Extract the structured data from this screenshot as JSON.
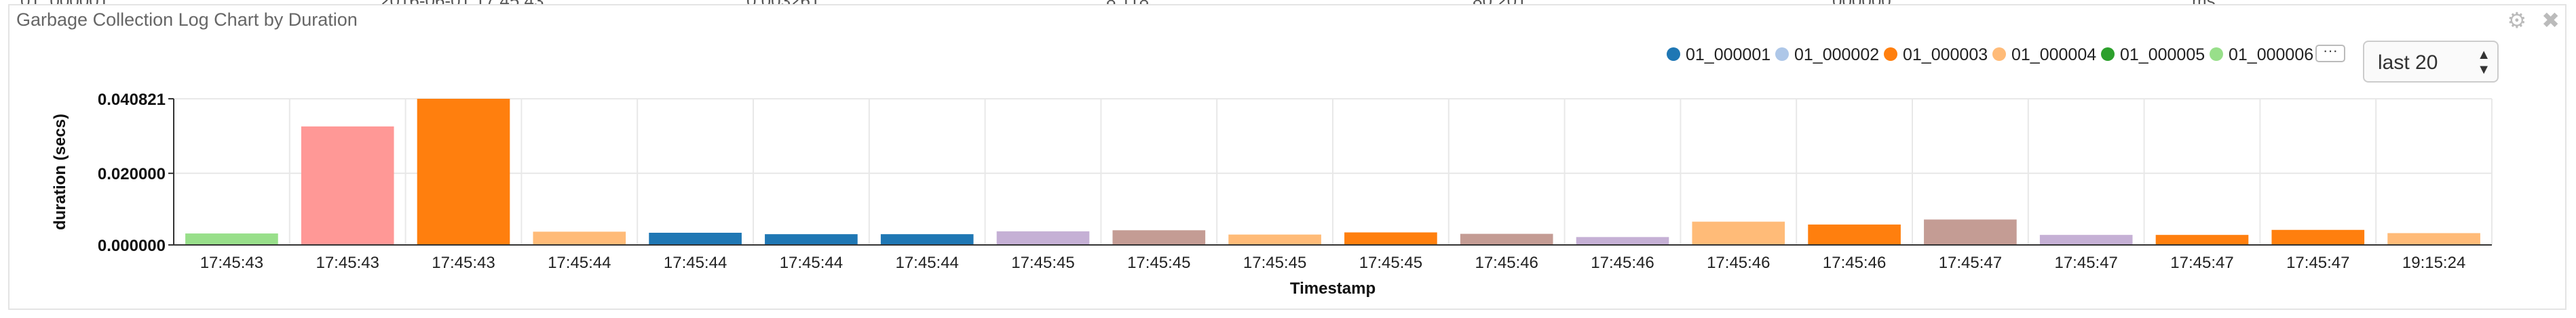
{
  "panel": {
    "title": "Garbage Collection Log Chart by Duration",
    "settings_icon": "gear-icon",
    "close_icon": "close-icon"
  },
  "legend_more_label": "···",
  "range_select": {
    "value": "last 20"
  },
  "chart_data": {
    "type": "bar",
    "xlabel": "Timestamp",
    "ylabel": "duration (secs)",
    "ytick_labels": [
      "0.000000",
      "0.020000",
      "0.040821"
    ],
    "ylim": [
      0,
      0.040821
    ],
    "grid": true,
    "legend_position": "top-right",
    "legend": [
      {
        "name": "01_000001",
        "color": "#1f77b4"
      },
      {
        "name": "01_000002",
        "color": "#aec7e8"
      },
      {
        "name": "01_000003",
        "color": "#ff7f0e"
      },
      {
        "name": "01_000004",
        "color": "#ffbb78"
      },
      {
        "name": "01_000005",
        "color": "#2ca02c"
      },
      {
        "name": "01_000006",
        "color": "#98df8a"
      }
    ],
    "categories": [
      "17:45:43",
      "17:45:43",
      "17:45:43",
      "17:45:44",
      "17:45:44",
      "17:45:44",
      "17:45:44",
      "17:45:45",
      "17:45:45",
      "17:45:45",
      "17:45:45",
      "17:45:46",
      "17:45:46",
      "17:45:46",
      "17:45:46",
      "17:45:47",
      "17:45:47",
      "17:45:47",
      "17:45:47",
      "19:15:24"
    ],
    "values": [
      0.0032,
      0.0331,
      0.040821,
      0.0037,
      0.0034,
      0.003,
      0.003,
      0.0038,
      0.0041,
      0.0029,
      0.0035,
      0.0031,
      0.0022,
      0.0065,
      0.0057,
      0.0071,
      0.0028,
      0.0028,
      0.0042,
      0.0033
    ],
    "bar_colors": [
      "#98df8a",
      "#ff9896",
      "#ff7f0e",
      "#ffbb78",
      "#1f77b4",
      "#1f77b4",
      "#1f77b4",
      "#c5b0d5",
      "#c49c94",
      "#ffbb78",
      "#ff7f0e",
      "#c49c94",
      "#c5b0d5",
      "#ffbb78",
      "#ff7f0e",
      "#c49c94",
      "#c5b0d5",
      "#ff7f0e",
      "#ff7f0e",
      "#ffbb78"
    ]
  }
}
